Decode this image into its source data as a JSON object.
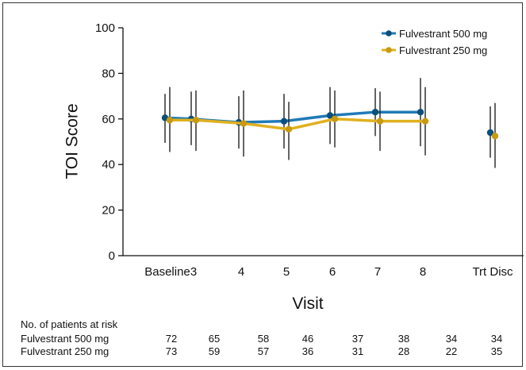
{
  "chart_data": {
    "type": "line",
    "xlabel": "Visit",
    "ylabel": "TOI Score",
    "ylim": [
      0,
      100
    ],
    "yticks": [
      0,
      20,
      40,
      60,
      80,
      100
    ],
    "categories": [
      "Baseline",
      "3",
      "4",
      "5",
      "6",
      "7",
      "8",
      "Trt Disc"
    ],
    "legend_position": "top-right",
    "grid": false,
    "series": [
      {
        "name": "Fulvestrant 500 mg",
        "color": "#1f7ab8",
        "marker_color": "#0b4f7a",
        "values": [
          60.5,
          60.0,
          58.5,
          59.0,
          61.5,
          63.0,
          63.0,
          54.0
        ],
        "lower": [
          49.5,
          48.5,
          47.0,
          47.0,
          49.0,
          52.5,
          48.0,
          43.0
        ],
        "upper": [
          71.0,
          72.0,
          70.0,
          71.0,
          74.0,
          73.5,
          78.0,
          65.5
        ],
        "connected": [
          true,
          true,
          true,
          true,
          true,
          true,
          true,
          false
        ]
      },
      {
        "name": "Fulvestrant 250 mg",
        "color": "#e0b020",
        "marker_color": "#c89a10",
        "values": [
          59.5,
          59.5,
          58.0,
          55.5,
          60.0,
          59.0,
          59.0,
          52.5
        ],
        "lower": [
          45.5,
          46.0,
          43.5,
          42.0,
          47.5,
          46.0,
          44.0,
          38.5
        ],
        "upper": [
          74.0,
          72.5,
          72.5,
          67.5,
          72.5,
          72.0,
          74.0,
          67.0
        ],
        "connected": [
          true,
          true,
          true,
          true,
          true,
          true,
          true,
          false
        ]
      }
    ]
  },
  "risk_table": {
    "header": "No. of patients at risk",
    "rows": [
      {
        "label": "Fulvestrant 500 mg",
        "counts": [
          "72",
          "65",
          "58",
          "46",
          "37",
          "38",
          "34",
          "34"
        ]
      },
      {
        "label": "Fulvestrant 250 mg",
        "counts": [
          "73",
          "59",
          "57",
          "36",
          "31",
          "28",
          "22",
          "35"
        ]
      }
    ]
  }
}
